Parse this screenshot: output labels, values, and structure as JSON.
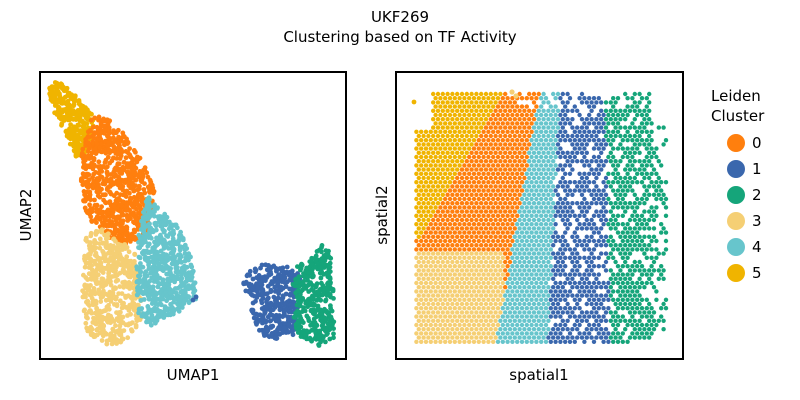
{
  "figure": {
    "title": "UKF269",
    "subtitle": "Clustering based on TF Activity"
  },
  "legend": {
    "title_line1": "Leiden",
    "title_line2": "Cluster",
    "placement": "right"
  },
  "chart_data": [
    {
      "type": "scatter",
      "xlabel": "UMAP1",
      "ylabel": "UMAP2",
      "xticks": [],
      "yticks": [],
      "grid": false,
      "clusters": [
        {
          "name": "0",
          "color": "#ff7f0e"
        },
        {
          "name": "1",
          "color": "#3a67ad"
        },
        {
          "name": "2",
          "color": "#15a57a"
        },
        {
          "name": "3",
          "color": "#f5cf74"
        },
        {
          "name": "4",
          "color": "#67c5cc"
        },
        {
          "name": "5",
          "color": "#f0b400"
        }
      ]
    },
    {
      "type": "scatter",
      "xlabel": "spatial1",
      "ylabel": "spatial2",
      "xticks": [],
      "yticks": [],
      "grid": false,
      "clusters": [
        {
          "name": "0",
          "color": "#ff7f0e"
        },
        {
          "name": "1",
          "color": "#3a67ad"
        },
        {
          "name": "2",
          "color": "#15a57a"
        },
        {
          "name": "3",
          "color": "#f5cf74"
        },
        {
          "name": "4",
          "color": "#67c5cc"
        },
        {
          "name": "5",
          "color": "#f0b400"
        }
      ]
    }
  ]
}
